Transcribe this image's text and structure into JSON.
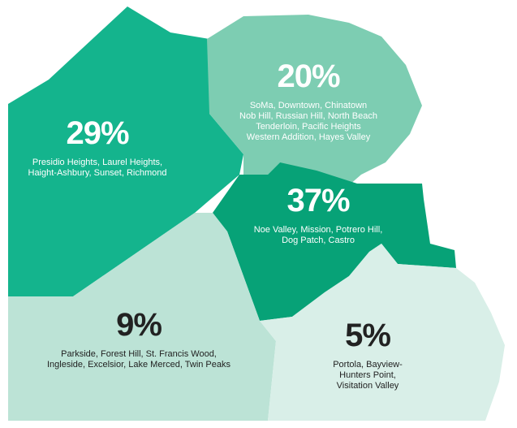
{
  "regions": [
    {
      "percent": "29%",
      "neighborhoods": [
        "Presidio Heights, Laurel Heights,",
        "Haight-Ashbury, Sunset, Richmond"
      ]
    },
    {
      "percent": "20%",
      "neighborhoods": [
        "SoMa, Downtown, Chinatown",
        "Nob Hill, Russian Hill, North Beach",
        "Tenderloin, Pacific Heights",
        "Western Addition, Hayes Valley"
      ]
    },
    {
      "percent": "37%",
      "neighborhoods": [
        "Noe Valley, Mission, Potrero Hill,",
        "Dog Patch, Castro"
      ]
    },
    {
      "percent": "9%",
      "neighborhoods": [
        "Parkside, Forest Hill, St. Francis Wood,",
        "Ingleside, Excelsior, Lake Merced, Twin Peaks"
      ]
    },
    {
      "percent": "5%",
      "neighborhoods": [
        "Portola, Bayview-",
        "Hunters Point,",
        "Visitation Valley"
      ]
    }
  ]
}
